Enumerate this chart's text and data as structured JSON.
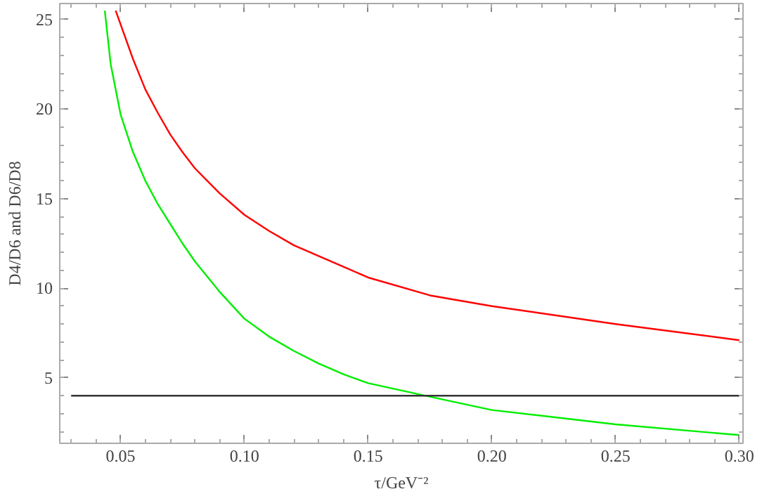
{
  "chart_data": {
    "type": "line",
    "xlabel": "τ/GeV⁻²",
    "ylabel": "D4/D6 and D6/D8",
    "xlim": [
      0.0254,
      0.3015
    ],
    "ylim": [
      1.34,
      25.9
    ],
    "xticks": [
      {
        "value": 0.05,
        "label": "0.05"
      },
      {
        "value": 0.1,
        "label": "0.10"
      },
      {
        "value": 0.15,
        "label": "0.15"
      },
      {
        "value": 0.2,
        "label": "0.20"
      },
      {
        "value": 0.25,
        "label": "0.25"
      },
      {
        "value": 0.3,
        "label": "0.30"
      }
    ],
    "yticks": [
      5,
      10,
      15,
      20,
      25
    ],
    "grid": false,
    "marker": "none",
    "line_style": "solid",
    "series": [
      {
        "color": "#ff0000",
        "x": [
          0.048,
          0.055,
          0.06,
          0.065,
          0.07,
          0.075,
          0.08,
          0.09,
          0.1,
          0.11,
          0.12,
          0.13,
          0.14,
          0.15,
          0.175,
          0.2,
          0.25,
          0.3
        ],
        "values": [
          25.5,
          22.8,
          21.1,
          19.8,
          18.6,
          17.6,
          16.7,
          15.3,
          14.1,
          13.2,
          12.4,
          11.8,
          11.2,
          10.6,
          9.6,
          9.0,
          8.0,
          7.1
        ]
      },
      {
        "color": "#00ee00",
        "x": [
          0.0436,
          0.046,
          0.05,
          0.055,
          0.06,
          0.065,
          0.07,
          0.075,
          0.08,
          0.09,
          0.1,
          0.11,
          0.12,
          0.13,
          0.14,
          0.15,
          0.173,
          0.2,
          0.25,
          0.3
        ],
        "values": [
          25.5,
          22.5,
          19.7,
          17.6,
          16.0,
          14.7,
          13.6,
          12.5,
          11.5,
          9.8,
          8.3,
          7.3,
          6.5,
          5.8,
          5.2,
          4.7,
          4.0,
          3.2,
          2.4,
          1.8
        ]
      },
      {
        "color": "#333333",
        "x": [
          0.03,
          0.3
        ],
        "values": [
          4,
          4
        ]
      }
    ]
  }
}
